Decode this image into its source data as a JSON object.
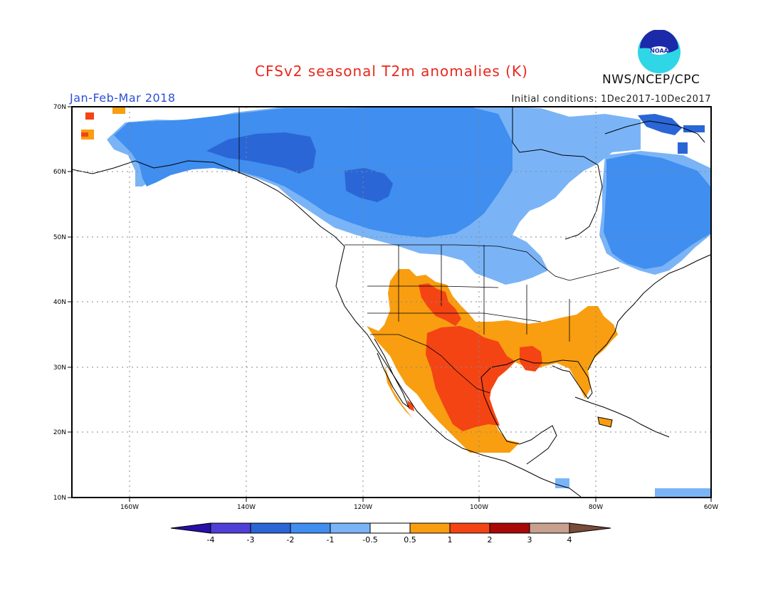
{
  "title": "CFSv2 seasonal T2m anomalies (K)",
  "season": "Jan-Feb-Mar 2018",
  "initial_conditions": "Initial conditions: 1Dec2017-10Dec2017",
  "agency": "NWS/NCEP/CPC",
  "logo_text": "NOAA",
  "map": {
    "lat_labels": [
      "70N",
      "60N",
      "50N",
      "40N",
      "30N",
      "20N",
      "10N"
    ],
    "lon_labels": [
      "160W",
      "140W",
      "120W",
      "100W",
      "80W",
      "60W"
    ]
  },
  "colorbar": {
    "labels": [
      "-4",
      "-3",
      "-2",
      "-1",
      "-0.5",
      "0.5",
      "1",
      "2",
      "3",
      "4"
    ],
    "colors": [
      "#2a0ea8",
      "#4f3fd6",
      "#2a66d6",
      "#3f8ef0",
      "#7ab4f6",
      "#ffffff",
      "#f89e10",
      "#f44414",
      "#a80808",
      "#c8a090",
      "#7a4a3a"
    ]
  }
}
